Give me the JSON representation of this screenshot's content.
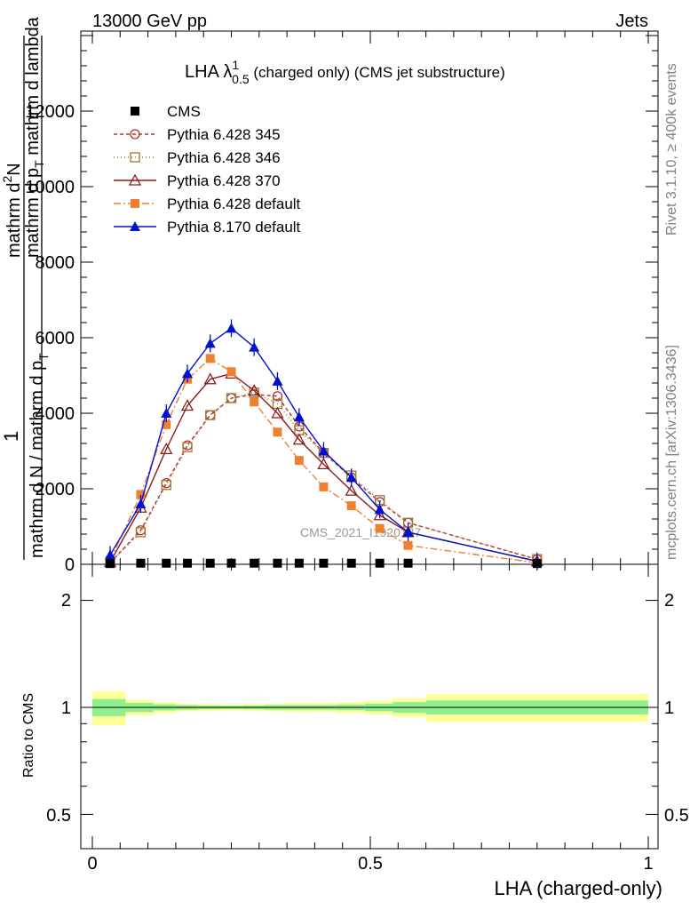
{
  "header": {
    "energy": "13000 GeV pp",
    "category": "Jets"
  },
  "side": {
    "rivet": "Rivet 3.1.10, ≥ 400k events",
    "mcplots": "mcplots.cern.ch [arXiv:1306.3436]"
  },
  "chart_data": {
    "type": "line",
    "title_main": "LHA λ",
    "title_sup": "1",
    "title_sub": "0.5",
    "title_rest": " (charged only) (CMS jet substructure)",
    "watermark": "CMS_2021_I1920187",
    "ylabel_line1": "mathrm d",
    "ylabel_sup": "2",
    "ylabel_N": "N",
    "ylabel_line2": "mathrm d p",
    "ylabel_sub_T": "T",
    "ylabel_line2b": " mathrm d lambda",
    "ylabel_one": "1",
    "ylabel_denom": "mathrm d N / mathrm d p",
    "ylabel_denom_sub": "T",
    "xlabel": "LHA (charged-only)",
    "ratio_ylabel": "Ratio to CMS",
    "xlim": [
      0,
      1
    ],
    "ylim": [
      0,
      14000
    ],
    "ratio_ylim": [
      0.4,
      2.4
    ],
    "y_ticks": [
      "0",
      "2000",
      "4000",
      "6000",
      "8000",
      "10000",
      "12000"
    ],
    "x_ticks": [
      "0",
      "0.5",
      "1"
    ],
    "ratio_ticks": [
      "0.5",
      "1",
      "2"
    ],
    "legend_position": "top-left",
    "x": [
      0.032,
      0.087,
      0.133,
      0.171,
      0.212,
      0.25,
      0.291,
      0.333,
      0.372,
      0.416,
      0.466,
      0.517,
      0.568,
      0.8
    ],
    "cms": [
      20,
      30,
      30,
      30,
      30,
      30,
      30,
      30,
      30,
      30,
      30,
      30,
      30,
      20
    ],
    "series": [
      {
        "name": "CMS",
        "style": "cms",
        "color": "#000000",
        "marker": "square"
      },
      {
        "name": "Pythia 6.428 345",
        "style": "p345",
        "color": "#b03030",
        "marker": "circle-open",
        "dash": "4,3",
        "values": [
          40,
          900,
          2150,
          3150,
          3950,
          4400,
          4500,
          4450,
          3650,
          2950,
          2300,
          1650,
          1100,
          130
        ]
      },
      {
        "name": "Pythia 6.428 346",
        "style": "p346",
        "color": "#a07830",
        "marker": "square-open",
        "dash": "1,3",
        "values": [
          40,
          850,
          2100,
          3100,
          3950,
          4400,
          4550,
          4250,
          3550,
          2950,
          2350,
          1700,
          1100,
          140
        ]
      },
      {
        "name": "Pythia 6.428 370",
        "style": "p370",
        "color": "#8b1a1a",
        "marker": "triangle-open",
        "dash": "",
        "values": [
          60,
          1500,
          3050,
          4200,
          4900,
          5050,
          4600,
          4000,
          3300,
          2650,
          1950,
          1300,
          850,
          80
        ]
      },
      {
        "name": "Pythia 6.428 default",
        "style": "p6def",
        "color": "#f08030",
        "marker": "square",
        "dash": "8,3,2,3",
        "values": [
          100,
          1850,
          3700,
          4900,
          5450,
          5100,
          4300,
          3500,
          2750,
          2050,
          1550,
          950,
          500,
          40
        ]
      },
      {
        "name": "Pythia 8.170 default",
        "style": "p8def",
        "color": "#0010d0",
        "marker": "triangle",
        "dash": "",
        "values": [
          250,
          1600,
          4000,
          5050,
          5850,
          6250,
          5750,
          4850,
          3900,
          3000,
          2300,
          1450,
          850,
          80
        ]
      }
    ],
    "ratio_bands": [
      {
        "x0": 0.0,
        "x1": 0.06,
        "green": 0.055,
        "yellow": 0.11
      },
      {
        "x0": 0.06,
        "x1": 0.11,
        "green": 0.03,
        "yellow": 0.05
      },
      {
        "x0": 0.11,
        "x1": 0.15,
        "green": 0.02,
        "yellow": 0.035
      },
      {
        "x0": 0.15,
        "x1": 0.19,
        "green": 0.015,
        "yellow": 0.025
      },
      {
        "x0": 0.19,
        "x1": 0.23,
        "green": 0.012,
        "yellow": 0.022
      },
      {
        "x0": 0.23,
        "x1": 0.27,
        "green": 0.01,
        "yellow": 0.02
      },
      {
        "x0": 0.27,
        "x1": 0.31,
        "green": 0.012,
        "yellow": 0.022
      },
      {
        "x0": 0.31,
        "x1": 0.35,
        "green": 0.015,
        "yellow": 0.025
      },
      {
        "x0": 0.35,
        "x1": 0.39,
        "green": 0.015,
        "yellow": 0.03
      },
      {
        "x0": 0.39,
        "x1": 0.44,
        "green": 0.015,
        "yellow": 0.028
      },
      {
        "x0": 0.44,
        "x1": 0.49,
        "green": 0.018,
        "yellow": 0.035
      },
      {
        "x0": 0.49,
        "x1": 0.54,
        "green": 0.025,
        "yellow": 0.045
      },
      {
        "x0": 0.54,
        "x1": 0.6,
        "green": 0.035,
        "yellow": 0.06
      },
      {
        "x0": 0.6,
        "x1": 1.0,
        "green": 0.045,
        "yellow": 0.09
      }
    ],
    "colors": {
      "green_band": "#90f090",
      "yellow_band": "#ffff99"
    }
  }
}
